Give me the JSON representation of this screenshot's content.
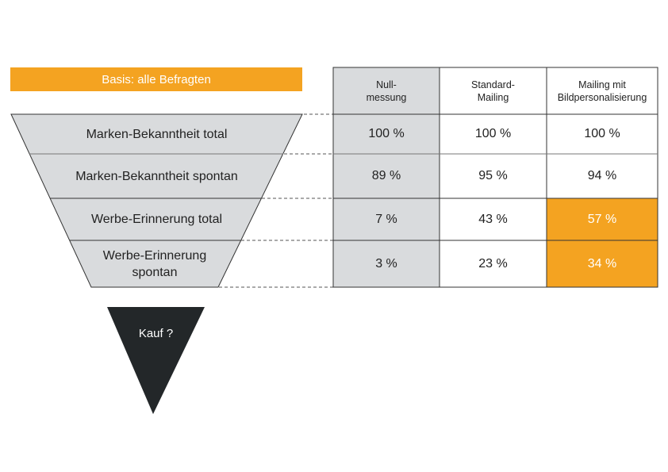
{
  "basis_label": "Basis: alle Befragten",
  "funnel": [
    {
      "label": "Marken-Bekanntheit total"
    },
    {
      "label": "Marken-Bekanntheit spontan"
    },
    {
      "label": "Werbe-Erinnerung total"
    },
    {
      "label": "Werbe-Erinnerung spontan"
    }
  ],
  "purchase_label": "Kauf ?",
  "table": {
    "headers": [
      "Null-\nmessung",
      "Standard-\nMailing",
      "Mailing mit\nBildpersonalisierung"
    ],
    "rows": [
      [
        "100 %",
        "100 %",
        "100 %"
      ],
      [
        "89 %",
        "95 %",
        "94 %"
      ],
      [
        "7 %",
        "43 %",
        "57 %"
      ],
      [
        "3 %",
        "23 %",
        "34 %"
      ]
    ],
    "highlighted_cells": [
      [
        2,
        2
      ],
      [
        3,
        2
      ]
    ]
  },
  "colors": {
    "accent": "#f4a321",
    "funnel_fill": "#d9dbdd",
    "null_column": "#d9dbdd",
    "triangle": "#232729"
  }
}
